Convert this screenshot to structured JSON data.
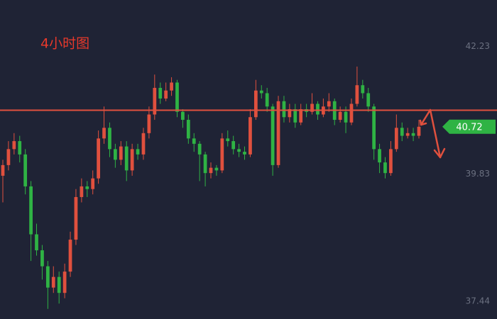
{
  "chart_data": {
    "type": "candlestick",
    "title": "4小时图",
    "title_color": "#e8392b",
    "up_color": "#e0503e",
    "down_color": "#2fb344",
    "open": [
      39.8,
      40.0,
      40.3,
      40.45,
      40.2,
      39.6,
      38.7,
      38.4,
      38.1,
      37.7,
      37.9,
      37.6,
      38.0,
      38.6,
      39.4,
      39.6,
      39.55,
      39.75,
      40.5,
      40.7,
      40.3,
      40.1,
      40.35,
      39.9,
      40.3,
      40.2,
      40.6,
      40.95,
      41.45,
      41.25,
      41.4,
      41.55,
      41.0,
      40.85,
      40.5,
      40.4,
      40.2,
      39.85,
      39.95,
      39.9,
      40.5,
      40.45,
      40.3,
      40.25,
      40.2,
      40.9,
      41.4,
      41.35,
      41.1,
      40.0,
      41.2,
      40.9,
      41.05,
      40.8,
      41.05,
      41.0,
      41.15,
      40.95,
      41.1,
      41.2,
      40.85,
      41.0,
      40.8,
      41.15,
      41.5,
      41.35,
      41.1,
      40.3,
      40.05,
      39.85,
      40.3,
      40.7,
      40.55,
      40.6,
      40.55
    ],
    "high": [
      40.1,
      40.45,
      40.6,
      40.55,
      40.3,
      39.7,
      38.9,
      38.5,
      38.2,
      38.1,
      38.0,
      38.15,
      38.75,
      39.55,
      39.75,
      39.7,
      39.9,
      40.65,
      41.1,
      40.8,
      40.4,
      40.45,
      40.45,
      40.4,
      40.4,
      40.7,
      41.1,
      41.7,
      41.55,
      41.55,
      41.65,
      41.6,
      41.05,
      40.95,
      40.6,
      40.45,
      40.25,
      40.05,
      40.0,
      40.6,
      40.65,
      40.55,
      40.4,
      40.35,
      41.05,
      41.6,
      41.5,
      41.45,
      41.15,
      41.3,
      41.3,
      41.15,
      41.15,
      41.15,
      41.15,
      41.35,
      41.2,
      41.25,
      41.35,
      41.25,
      41.1,
      41.1,
      41.25,
      41.85,
      41.6,
      41.45,
      41.15,
      40.4,
      40.15,
      40.45,
      40.95,
      40.8,
      40.7,
      40.7,
      40.85
    ],
    "low": [
      39.3,
      39.9,
      40.2,
      40.05,
      39.45,
      38.2,
      38.3,
      37.85,
      37.3,
      37.6,
      37.4,
      37.5,
      37.9,
      38.5,
      39.3,
      39.4,
      39.45,
      39.65,
      40.4,
      40.15,
      39.95,
      40.0,
      39.7,
      39.8,
      40.1,
      40.1,
      40.5,
      40.85,
      41.15,
      41.2,
      41.3,
      40.9,
      40.7,
      40.4,
      40.25,
      39.7,
      39.6,
      39.75,
      39.8,
      39.85,
      40.35,
      40.2,
      40.15,
      40.1,
      40.15,
      40.85,
      41.25,
      41.0,
      39.8,
      39.95,
      40.8,
      40.8,
      40.7,
      40.75,
      40.9,
      40.95,
      40.85,
      40.9,
      41.0,
      40.75,
      40.8,
      40.6,
      40.75,
      41.1,
      41.25,
      41.0,
      40.1,
      39.85,
      39.75,
      39.8,
      40.25,
      40.45,
      40.5,
      40.45,
      40.5
    ],
    "close": [
      40.0,
      40.3,
      40.45,
      40.2,
      39.6,
      38.7,
      38.4,
      38.1,
      37.7,
      37.9,
      37.6,
      38.0,
      38.6,
      39.4,
      39.6,
      39.55,
      39.75,
      40.5,
      40.7,
      40.3,
      40.1,
      40.35,
      39.9,
      40.3,
      40.2,
      40.6,
      40.95,
      41.45,
      41.25,
      41.4,
      41.55,
      41.0,
      40.85,
      40.5,
      40.4,
      40.2,
      39.85,
      39.95,
      39.9,
      40.5,
      40.45,
      40.3,
      40.25,
      40.2,
      40.9,
      41.4,
      41.35,
      41.1,
      40.0,
      41.2,
      40.9,
      41.05,
      40.8,
      41.05,
      41.0,
      41.15,
      40.95,
      41.1,
      41.2,
      40.85,
      41.0,
      40.8,
      41.15,
      41.5,
      41.35,
      41.1,
      40.3,
      40.05,
      39.85,
      40.3,
      40.7,
      40.55,
      40.6,
      40.55,
      40.72
    ],
    "ylim": [
      37.11,
      43.1
    ],
    "yticks": [
      37.44,
      39.83,
      42.23
    ],
    "reference_line": {
      "value": 41.03,
      "color": "#e0503e"
    },
    "last_price": 40.72,
    "last_price_color": "#2fb344"
  }
}
